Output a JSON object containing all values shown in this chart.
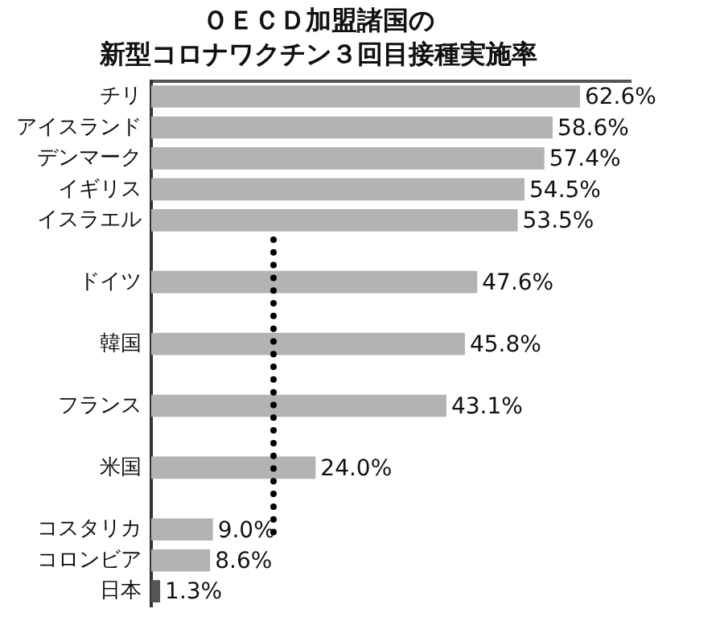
{
  "chart_data": {
    "type": "bar",
    "orientation": "horizontal",
    "title": "ＯＥＣＤ加盟諸国の",
    "subtitle": "新型コロナワクチン３回目接種実施率",
    "categories": [
      "チリ",
      "アイスランド",
      "デンマーク",
      "イギリス",
      "イスラエル",
      null,
      "ドイツ",
      null,
      "韓国",
      null,
      "フランス",
      null,
      "米国",
      null,
      "コスタリカ",
      "コロンビア",
      "日本"
    ],
    "values": [
      62.6,
      58.6,
      57.4,
      54.5,
      53.5,
      null,
      47.6,
      null,
      45.8,
      null,
      43.1,
      null,
      24.0,
      null,
      9.0,
      8.6,
      1.3
    ],
    "colors": [
      "#b3b3b3",
      "#b3b3b3",
      "#b3b3b3",
      "#b3b3b3",
      "#b3b3b3",
      null,
      "#b3b3b3",
      null,
      "#b3b3b3",
      null,
      "#b3b3b3",
      null,
      "#b3b3b3",
      null,
      "#b3b3b3",
      "#b3b3b3",
      "#555555"
    ],
    "value_labels": [
      "62.6%",
      "58.6%",
      "57.4%",
      "54.5%",
      "53.5%",
      null,
      "47.6%",
      null,
      "45.8%",
      null,
      "43.1%",
      null,
      "24.0%",
      null,
      "9.0%",
      "8.6%",
      "1.3%"
    ],
    "tick_labels": "y",
    "grid": false,
    "legend": false
  }
}
